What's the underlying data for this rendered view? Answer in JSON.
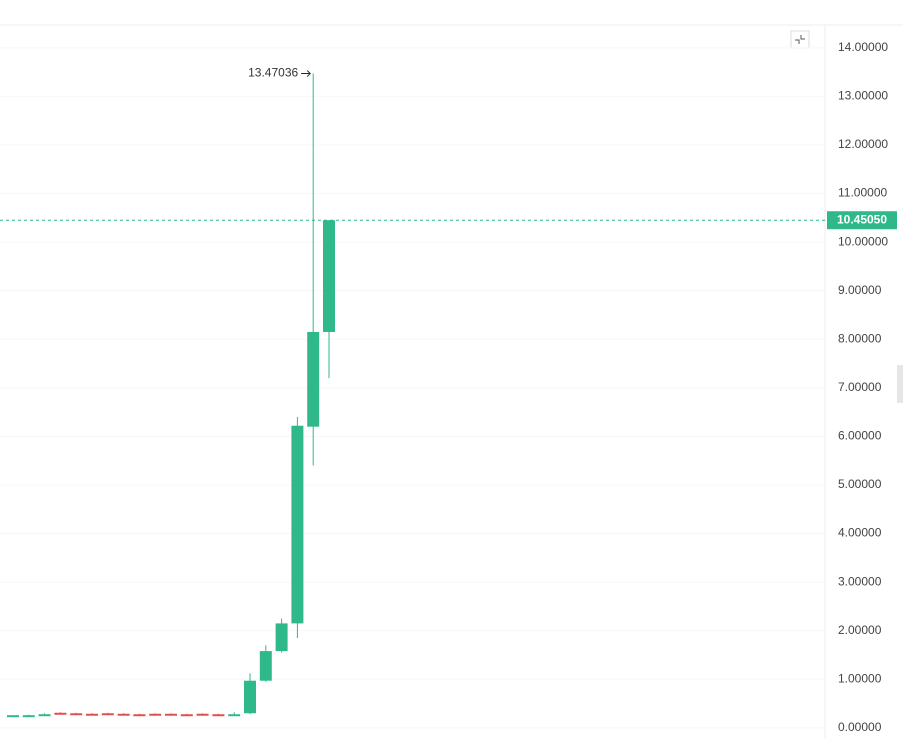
{
  "chart_data": {
    "type": "candlestick",
    "categories": [
      null,
      null,
      null,
      null,
      null,
      null,
      null,
      null,
      null,
      null,
      null,
      null,
      null,
      null,
      null,
      null,
      null,
      null,
      null,
      null,
      null
    ],
    "open": [
      0.25,
      0.26,
      0.26,
      0.31,
      0.3,
      0.29,
      0.3,
      0.29,
      0.28,
      0.29,
      0.29,
      0.28,
      0.29,
      0.28,
      0.27,
      0.3,
      0.97,
      1.58,
      2.15,
      6.2,
      8.15
    ],
    "high": [
      0.26,
      0.27,
      0.3,
      0.32,
      0.31,
      0.3,
      0.31,
      0.3,
      0.29,
      0.3,
      0.3,
      0.29,
      0.3,
      0.29,
      0.32,
      1.12,
      1.7,
      2.25,
      6.4,
      13.47036,
      10.45
    ],
    "low": [
      0.24,
      0.25,
      0.25,
      0.29,
      0.28,
      0.28,
      0.28,
      0.27,
      0.26,
      0.27,
      0.27,
      0.26,
      0.27,
      0.26,
      0.25,
      0.28,
      0.95,
      1.55,
      1.85,
      5.4,
      7.2
    ],
    "close": [
      0.26,
      0.26,
      0.28,
      0.3,
      0.29,
      0.28,
      0.29,
      0.28,
      0.27,
      0.28,
      0.28,
      0.27,
      0.28,
      0.27,
      0.28,
      0.97,
      1.58,
      2.15,
      6.22,
      8.15,
      10.4505
    ],
    "up_color": "#2fb98b",
    "down_color": "#e0504d",
    "ylim": [
      -0.23,
      14.47
    ],
    "yticks": [
      {
        "value": 0,
        "label": "0.00000"
      },
      {
        "value": 1,
        "label": "1.00000"
      },
      {
        "value": 2,
        "label": "2.00000"
      },
      {
        "value": 3,
        "label": "3.00000"
      },
      {
        "value": 4,
        "label": "4.00000"
      },
      {
        "value": 5,
        "label": "5.00000"
      },
      {
        "value": 6,
        "label": "6.00000"
      },
      {
        "value": 7,
        "label": "7.00000"
      },
      {
        "value": 8,
        "label": "8.00000"
      },
      {
        "value": 9,
        "label": "9.00000"
      },
      {
        "value": 10,
        "label": "10.00000"
      },
      {
        "value": 11,
        "label": "11.00000"
      },
      {
        "value": 12,
        "label": "12.00000"
      },
      {
        "value": 13,
        "label": "13.00000"
      },
      {
        "value": 14,
        "label": "14.00000"
      }
    ],
    "price_line": {
      "value": 10.4505,
      "label": "10.45050"
    },
    "max_annotation": {
      "value": 13.47036,
      "label": "13.47036"
    }
  }
}
